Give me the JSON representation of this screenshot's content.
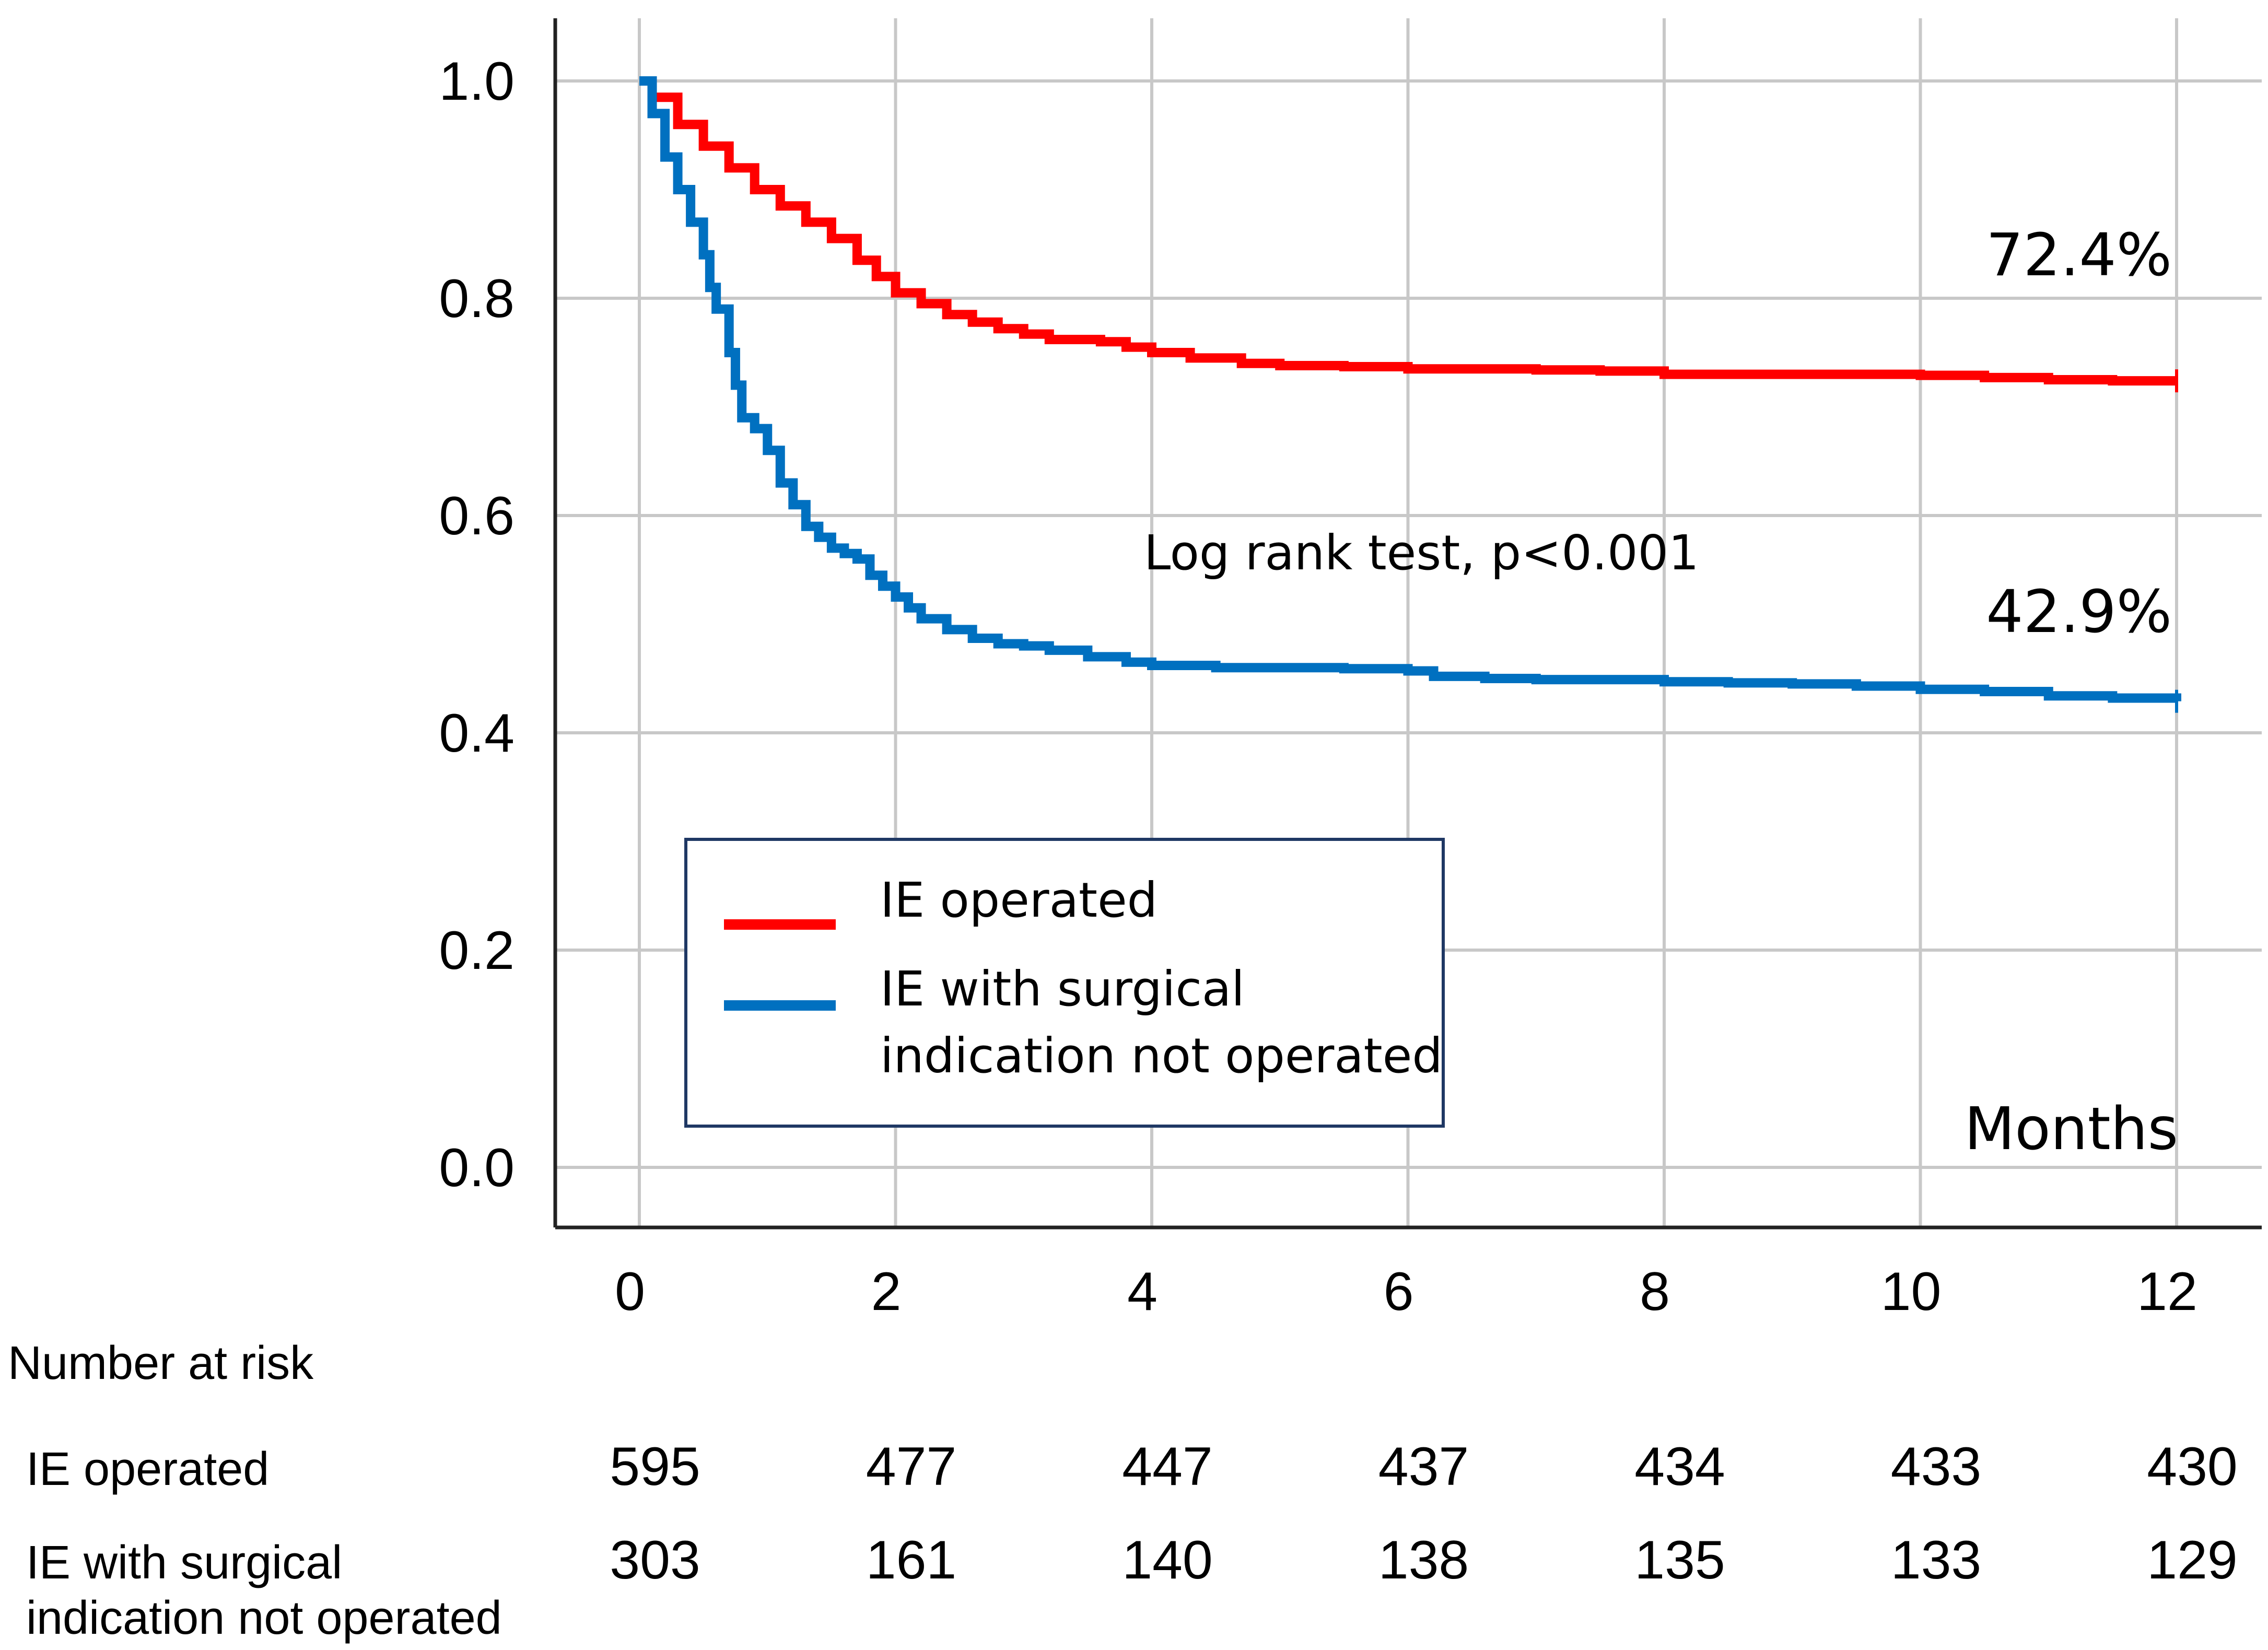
{
  "chart_data": {
    "type": "line",
    "subtype": "kaplan-meier",
    "xlabel": "Months",
    "ylabel": "",
    "xlim": [
      0,
      12
    ],
    "ylim": [
      0,
      1
    ],
    "x_ticks": [
      0,
      2,
      4,
      6,
      8,
      10,
      12
    ],
    "y_ticks": [
      "0.0",
      "0.2",
      "0.4",
      "0.6",
      "0.8",
      "1.0"
    ],
    "grid": true,
    "legend_position": "center-left",
    "series": [
      {
        "name": "IE operated",
        "color": "#ff0000",
        "end_label": "72.4%",
        "points": [
          [
            0,
            1.0
          ],
          [
            0.1,
            0.985
          ],
          [
            0.3,
            0.96
          ],
          [
            0.5,
            0.94
          ],
          [
            0.7,
            0.92
          ],
          [
            0.9,
            0.9
          ],
          [
            1.1,
            0.885
          ],
          [
            1.3,
            0.87
          ],
          [
            1.5,
            0.855
          ],
          [
            1.7,
            0.835
          ],
          [
            1.85,
            0.82
          ],
          [
            2.0,
            0.805
          ],
          [
            2.2,
            0.795
          ],
          [
            2.4,
            0.785
          ],
          [
            2.6,
            0.778
          ],
          [
            2.8,
            0.772
          ],
          [
            3.0,
            0.767
          ],
          [
            3.2,
            0.762
          ],
          [
            3.6,
            0.76
          ],
          [
            3.8,
            0.755
          ],
          [
            4.0,
            0.75
          ],
          [
            4.3,
            0.745
          ],
          [
            4.7,
            0.74
          ],
          [
            5.0,
            0.738
          ],
          [
            5.5,
            0.737
          ],
          [
            6.0,
            0.735
          ],
          [
            6.5,
            0.735
          ],
          [
            7.0,
            0.734
          ],
          [
            7.5,
            0.733
          ],
          [
            8.0,
            0.73
          ],
          [
            8.5,
            0.73
          ],
          [
            9.0,
            0.73
          ],
          [
            9.5,
            0.73
          ],
          [
            10.0,
            0.729
          ],
          [
            10.5,
            0.727
          ],
          [
            11.0,
            0.725
          ],
          [
            11.5,
            0.724
          ],
          [
            12.0,
            0.724
          ]
        ]
      },
      {
        "name": "IE with surgical indication not operated",
        "color": "#0070c0",
        "end_label": "42.9%",
        "points": [
          [
            0,
            1.0
          ],
          [
            0.1,
            0.97
          ],
          [
            0.2,
            0.93
          ],
          [
            0.3,
            0.9
          ],
          [
            0.4,
            0.87
          ],
          [
            0.5,
            0.84
          ],
          [
            0.55,
            0.81
          ],
          [
            0.6,
            0.79
          ],
          [
            0.7,
            0.75
          ],
          [
            0.75,
            0.72
          ],
          [
            0.8,
            0.69
          ],
          [
            0.9,
            0.68
          ],
          [
            1.0,
            0.66
          ],
          [
            1.1,
            0.63
          ],
          [
            1.2,
            0.61
          ],
          [
            1.3,
            0.59
          ],
          [
            1.4,
            0.58
          ],
          [
            1.5,
            0.57
          ],
          [
            1.6,
            0.565
          ],
          [
            1.7,
            0.56
          ],
          [
            1.8,
            0.545
          ],
          [
            1.9,
            0.535
          ],
          [
            2.0,
            0.525
          ],
          [
            2.1,
            0.515
          ],
          [
            2.2,
            0.505
          ],
          [
            2.4,
            0.495
          ],
          [
            2.6,
            0.487
          ],
          [
            2.8,
            0.482
          ],
          [
            3.0,
            0.48
          ],
          [
            3.2,
            0.476
          ],
          [
            3.5,
            0.47
          ],
          [
            3.8,
            0.465
          ],
          [
            4.0,
            0.462
          ],
          [
            4.5,
            0.46
          ],
          [
            5.0,
            0.46
          ],
          [
            5.5,
            0.459
          ],
          [
            6.0,
            0.457
          ],
          [
            6.2,
            0.452
          ],
          [
            6.6,
            0.45
          ],
          [
            7.0,
            0.449
          ],
          [
            7.5,
            0.449
          ],
          [
            8.0,
            0.447
          ],
          [
            8.5,
            0.446
          ],
          [
            9.0,
            0.445
          ],
          [
            9.5,
            0.443
          ],
          [
            10.0,
            0.44
          ],
          [
            10.5,
            0.438
          ],
          [
            11.0,
            0.434
          ],
          [
            11.5,
            0.432
          ],
          [
            12.0,
            0.429
          ]
        ]
      }
    ],
    "annotations": [
      {
        "text": "Log rank test, p<0.001",
        "x": 7.0,
        "y": 0.56
      }
    ]
  },
  "risk_table": {
    "title": "Number at risk",
    "x": [
      0,
      2,
      4,
      6,
      8,
      10,
      12
    ],
    "rows": [
      {
        "label": "IE operated",
        "values": [
          "595",
          "477",
          "447",
          "437",
          "434",
          "433",
          "430"
        ]
      },
      {
        "label_lines": [
          "IE with surgical",
          "indication not operated"
        ],
        "values": [
          "303",
          "161",
          "140",
          "138",
          "135",
          "133",
          "129"
        ]
      }
    ]
  },
  "legend": {
    "items": [
      {
        "lines": [
          "IE operated"
        ],
        "color": "#ff0000"
      },
      {
        "lines": [
          "IE with surgical",
          "indication not operated"
        ],
        "color": "#0070c0"
      }
    ]
  }
}
